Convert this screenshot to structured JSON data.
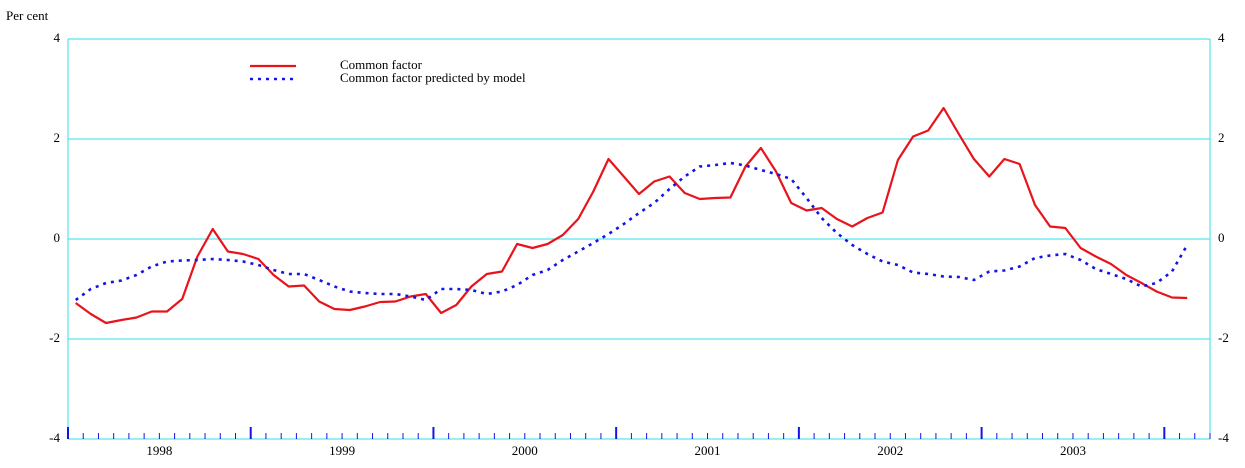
{
  "chart_data": {
    "type": "line",
    "y_axis_label": "Per cent",
    "x": [
      1998.042,
      1998.125,
      1998.208,
      1998.292,
      1998.375,
      1998.458,
      1998.542,
      1998.625,
      1998.708,
      1998.792,
      1998.875,
      1998.958,
      1999.042,
      1999.125,
      1999.208,
      1999.292,
      1999.375,
      1999.458,
      1999.542,
      1999.625,
      1999.708,
      1999.792,
      1999.875,
      1999.958,
      2000.042,
      2000.125,
      2000.208,
      2000.292,
      2000.375,
      2000.458,
      2000.542,
      2000.625,
      2000.708,
      2000.792,
      2000.875,
      2000.958,
      2001.042,
      2001.125,
      2001.208,
      2001.292,
      2001.375,
      2001.458,
      2001.542,
      2001.625,
      2001.708,
      2001.792,
      2001.875,
      2001.958,
      2002.042,
      2002.125,
      2002.208,
      2002.292,
      2002.375,
      2002.458,
      2002.542,
      2002.625,
      2002.708,
      2002.792,
      2002.875,
      2002.958,
      2003.042,
      2003.125,
      2003.208,
      2003.292,
      2003.375,
      2003.458,
      2003.542,
      2003.625,
      2003.708,
      2003.792,
      2003.875,
      2003.958,
      2004.042,
      2004.125
    ],
    "series": [
      {
        "name": "Common factor",
        "color": "#e8141c",
        "dash": "solid",
        "values": [
          -1.28,
          -1.5,
          -1.68,
          -1.62,
          -1.57,
          -1.45,
          -1.45,
          -1.2,
          -0.35,
          0.2,
          -0.25,
          -0.3,
          -0.4,
          -0.72,
          -0.95,
          -0.93,
          -1.25,
          -1.4,
          -1.42,
          -1.35,
          -1.26,
          -1.25,
          -1.15,
          -1.1,
          -1.48,
          -1.32,
          -0.95,
          -0.7,
          -0.65,
          -0.1,
          -0.18,
          -0.1,
          0.08,
          0.4,
          0.95,
          1.6,
          1.25,
          0.9,
          1.15,
          1.25,
          0.92,
          0.8,
          0.82,
          0.83,
          1.45,
          1.82,
          1.35,
          0.72,
          0.57,
          0.62,
          0.4,
          0.25,
          0.42,
          0.53,
          1.58,
          2.05,
          2.17,
          2.62,
          2.1,
          1.6,
          1.25,
          1.6,
          1.5,
          0.68,
          0.25,
          0.22,
          -0.18,
          -0.35,
          -0.5,
          -0.72,
          -0.88,
          -1.05,
          -1.17,
          -1.18
        ]
      },
      {
        "name": "Common factor predicted by model",
        "color": "#1414e6",
        "dash": "dotted",
        "values": [
          -1.22,
          -1.0,
          -0.88,
          -0.83,
          -0.72,
          -0.55,
          -0.45,
          -0.43,
          -0.42,
          -0.4,
          -0.42,
          -0.45,
          -0.52,
          -0.62,
          -0.7,
          -0.7,
          -0.82,
          -0.95,
          -1.05,
          -1.08,
          -1.1,
          -1.1,
          -1.15,
          -1.22,
          -1.0,
          -1.0,
          -1.02,
          -1.1,
          -1.05,
          -0.92,
          -0.72,
          -0.62,
          -0.42,
          -0.25,
          -0.08,
          0.1,
          0.3,
          0.52,
          0.72,
          1.0,
          1.25,
          1.45,
          1.48,
          1.52,
          1.47,
          1.38,
          1.3,
          1.2,
          0.82,
          0.42,
          0.12,
          -0.12,
          -0.3,
          -0.45,
          -0.52,
          -0.67,
          -0.7,
          -0.75,
          -0.76,
          -0.82,
          -0.65,
          -0.63,
          -0.55,
          -0.38,
          -0.33,
          -0.3,
          -0.42,
          -0.6,
          -0.7,
          -0.8,
          -0.95,
          -0.88,
          -0.65,
          -0.12
        ]
      }
    ],
    "xlim": [
      1998,
      2004.25
    ],
    "xticks": [
      {
        "value": 1998.5,
        "label": "1998"
      },
      {
        "value": 1999.5,
        "label": "1999"
      },
      {
        "value": 2000.5,
        "label": "2000"
      },
      {
        "value": 2001.5,
        "label": "2001"
      },
      {
        "value": 2002.5,
        "label": "2002"
      },
      {
        "value": 2003.5,
        "label": "2003"
      }
    ],
    "ylim": [
      -4,
      4
    ],
    "yticks": [
      -4,
      -2,
      0,
      2,
      4
    ],
    "grid": true,
    "grid_color": "#33e0e8",
    "legend_position": "top-left"
  }
}
